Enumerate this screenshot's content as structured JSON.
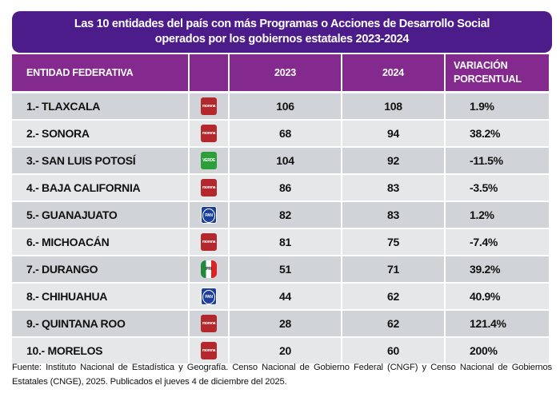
{
  "title": {
    "line1": "Las 10 entidades del país con más Programas o Acciones de Desarrollo Social",
    "line2": "operados por los gobiernos estatales 2023-2024"
  },
  "table": {
    "headers": {
      "entity": "ENTIDAD FEDERATIVA",
      "party": "",
      "y2023": "2023",
      "y2024": "2024",
      "variation_line1": "VARIACIÓN",
      "variation_line2": "PORCENTUAL"
    },
    "rows": [
      {
        "entity": "1.- TLAXCALA",
        "party": "morena",
        "party_label": "morena",
        "y2023": "106",
        "y2024": "108",
        "variation": "1.9%"
      },
      {
        "entity": "2.- SONORA",
        "party": "morena",
        "party_label": "morena",
        "y2023": "68",
        "y2024": "94",
        "variation": "38.2%"
      },
      {
        "entity": "3.- SAN LUIS POTOSÍ",
        "party": "verde",
        "party_label": "VERDE",
        "y2023": "104",
        "y2024": "92",
        "variation": "-11.5%"
      },
      {
        "entity": "4.- BAJA CALIFORNIA",
        "party": "morena",
        "party_label": "morena",
        "y2023": "86",
        "y2024": "83",
        "variation": "-3.5%"
      },
      {
        "entity": "5.- GUANAJUATO",
        "party": "pan",
        "party_label": "PAN",
        "y2023": "82",
        "y2024": "83",
        "variation": "1.2%"
      },
      {
        "entity": "6.- MICHOACÁN",
        "party": "morena",
        "party_label": "morena",
        "y2023": "81",
        "y2024": "75",
        "variation": "-7.4%"
      },
      {
        "entity": "7.- DURANGO",
        "party": "pri",
        "party_label": "PRI",
        "y2023": "51",
        "y2024": "71",
        "variation": "39.2%"
      },
      {
        "entity": "8.- CHIHUAHUA",
        "party": "pan",
        "party_label": "PAN",
        "y2023": "44",
        "y2024": "62",
        "variation": "40.9%"
      },
      {
        "entity": "9.- QUINTANA ROO",
        "party": "morena",
        "party_label": "morena",
        "y2023": "28",
        "y2024": "62",
        "variation": "121.4%"
      },
      {
        "entity": "10.- MORELOS",
        "party": "morena",
        "party_label": "morena",
        "y2023": "20",
        "y2024": "60",
        "variation": "200%"
      }
    ]
  },
  "colors": {
    "title_bg": "#4b1c8a",
    "header_bg": "#842a8f",
    "row_odd": "#d0d3d7",
    "row_even": "#e6e7e9",
    "morena": "#b3282d",
    "pan": "#1b3f9b",
    "verde": "#2c9e3a"
  },
  "footnote": "Fuente: Instituto Nacional de Estadística y Geografía. Censo Nacional de Gobierno Federal (CNGF) y Censo Nacional de Gobiernos Estatales (CNGE), 2025. Publicados el jueves 4 de diciembre del 2025."
}
